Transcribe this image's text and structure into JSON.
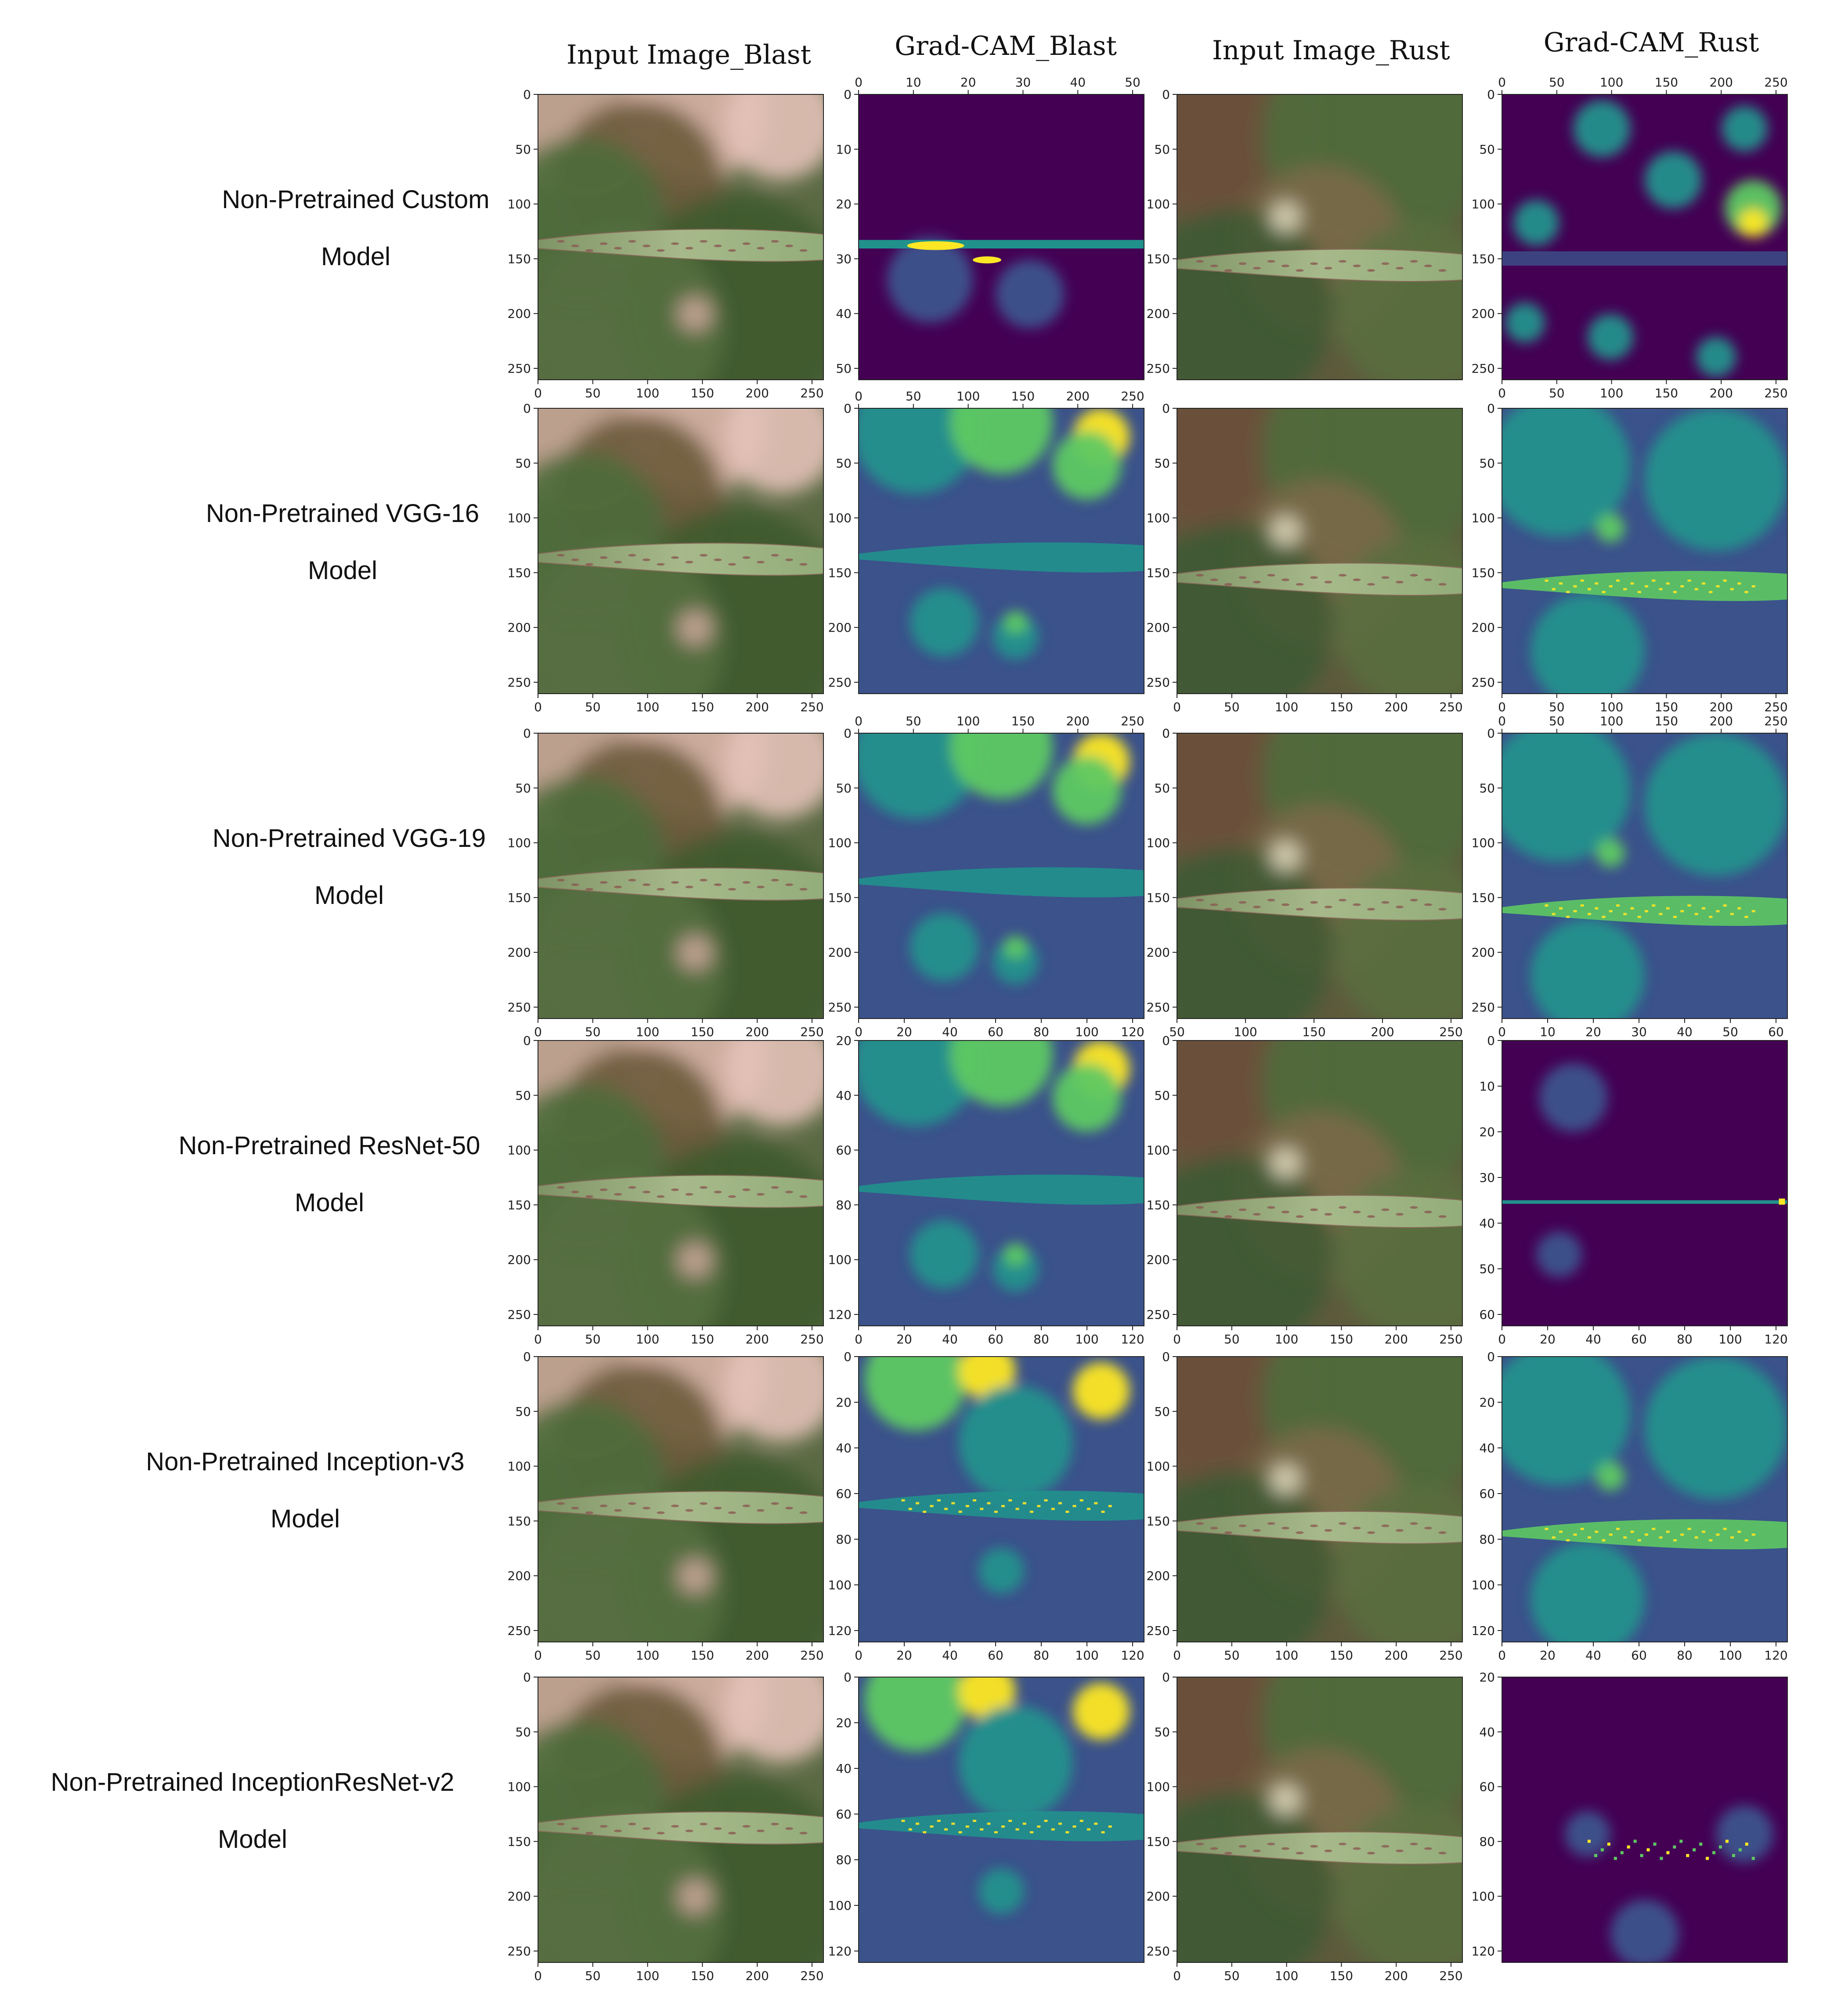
{
  "column_headers": [
    "Input Image_Blast",
    "Grad-CAM_Blast",
    "Input Image_Rust",
    "Grad-CAM_Rust"
  ],
  "rows": [
    {
      "label_line1": "Non-Pretrained Custom",
      "label_line2": "Model",
      "panels": [
        {
          "kind": "photo-blast",
          "x_ticks": [
            "0",
            "50",
            "100",
            "150",
            "200",
            "250"
          ],
          "y_ticks": [
            "0",
            "50",
            "100",
            "150",
            "200",
            "250"
          ],
          "x_axis": "bottom"
        },
        {
          "kind": "heat-sparse-blast",
          "x_ticks": [
            "0",
            "10",
            "20",
            "30",
            "40",
            "50"
          ],
          "y_ticks": [
            "0",
            "10",
            "20",
            "30",
            "40",
            "50"
          ],
          "x_axis": "top"
        },
        {
          "kind": "photo-rust",
          "x_ticks": [],
          "y_ticks": [
            "0",
            "50",
            "100",
            "150",
            "200",
            "250"
          ],
          "x_axis": "none"
        },
        {
          "kind": "heat-blobs-rust",
          "x_ticks": [
            "0",
            "50",
            "100",
            "150",
            "200",
            "250"
          ],
          "x_ticks_bottom": [
            "0",
            "50",
            "100",
            "150",
            "200",
            "250"
          ],
          "y_ticks": [
            "0",
            "50",
            "100",
            "150",
            "200",
            "250"
          ],
          "x_axis": "top"
        }
      ]
    },
    {
      "label_line1": "Non-Pretrained VGG-16",
      "label_line2": "Model",
      "panels": [
        {
          "kind": "photo-blast",
          "x_ticks": [
            "0",
            "50",
            "100",
            "150",
            "200",
            "250"
          ],
          "y_ticks": [
            "0",
            "50",
            "100",
            "150",
            "200",
            "250"
          ],
          "x_axis": "bottom"
        },
        {
          "kind": "heat-smooth-blast",
          "x_ticks": [
            "0",
            "50",
            "100",
            "150",
            "200",
            "250"
          ],
          "y_ticks": [
            "0",
            "50",
            "100",
            "150",
            "200",
            "250"
          ],
          "x_axis": "top"
        },
        {
          "kind": "photo-rust",
          "x_ticks": [
            "0",
            "50",
            "100",
            "150",
            "200",
            "250"
          ],
          "y_ticks": [
            "0",
            "50",
            "100",
            "150",
            "200",
            "250"
          ],
          "x_axis": "bottom"
        },
        {
          "kind": "heat-smooth-rust",
          "x_ticks": [
            "0",
            "50",
            "100",
            "150",
            "200",
            "250"
          ],
          "y_ticks": [
            "0",
            "50",
            "100",
            "150",
            "200",
            "250"
          ],
          "x_axis": "bottom"
        }
      ]
    },
    {
      "label_line1": "Non-Pretrained VGG-19",
      "label_line2": "Model",
      "panels": [
        {
          "kind": "photo-blast",
          "x_ticks": [
            "0",
            "50",
            "100",
            "150",
            "200",
            "250"
          ],
          "y_ticks": [
            "0",
            "50",
            "100",
            "150",
            "200",
            "250"
          ],
          "x_axis": "bottom"
        },
        {
          "kind": "heat-smooth-blast",
          "x_ticks": [
            "0",
            "50",
            "100",
            "150",
            "200",
            "250"
          ],
          "x_ticks_bottom": [
            "0",
            "20",
            "40",
            "60",
            "80",
            "100",
            "120"
          ],
          "y_ticks": [
            "0",
            "50",
            "100",
            "150",
            "200",
            "250"
          ],
          "x_axis": "top"
        },
        {
          "kind": "photo-rust",
          "x_ticks": [
            "50",
            "100",
            "150",
            "200",
            "250"
          ],
          "y_ticks": [
            "0",
            "50",
            "100",
            "150",
            "200",
            "250"
          ],
          "x_axis": "bottom"
        },
        {
          "kind": "heat-smooth-rust",
          "x_ticks": [
            "0",
            "50",
            "100",
            "150",
            "200",
            "250"
          ],
          "x_ticks_bottom": [
            "0",
            "10",
            "20",
            "30",
            "40",
            "50",
            "60"
          ],
          "y_ticks": [
            "0",
            "50",
            "100",
            "150",
            "200",
            "250"
          ],
          "x_axis": "top"
        }
      ]
    },
    {
      "label_line1": "Non-Pretrained ResNet-50",
      "label_line2": "Model",
      "panels": [
        {
          "kind": "photo-blast",
          "x_ticks": [
            "0",
            "50",
            "100",
            "150",
            "200",
            "250"
          ],
          "y_ticks": [
            "0",
            "50",
            "100",
            "150",
            "200",
            "250"
          ],
          "x_axis": "bottom"
        },
        {
          "kind": "heat-smooth-blast",
          "x_ticks": [
            "0",
            "20",
            "40",
            "60",
            "80",
            "100",
            "120"
          ],
          "y_ticks": [
            "20",
            "40",
            "60",
            "80",
            "100",
            "120"
          ],
          "x_axis": "bottom"
        },
        {
          "kind": "photo-rust",
          "x_ticks": [
            "0",
            "50",
            "100",
            "150",
            "200",
            "250"
          ],
          "y_ticks": [
            "0",
            "50",
            "100",
            "150",
            "200",
            "250"
          ],
          "x_axis": "bottom"
        },
        {
          "kind": "heat-sparse-rust",
          "x_ticks": [
            "0",
            "20",
            "40",
            "60",
            "80",
            "100",
            "120"
          ],
          "y_ticks": [
            "0",
            "10",
            "20",
            "30",
            "40",
            "50",
            "60"
          ],
          "x_axis": "bottom"
        }
      ]
    },
    {
      "label_line1": "Non-Pretrained Inception-v3",
      "label_line2": "Model",
      "panels": [
        {
          "kind": "photo-blast",
          "x_ticks": [
            "0",
            "50",
            "100",
            "150",
            "200",
            "250"
          ],
          "y_ticks": [
            "0",
            "50",
            "100",
            "150",
            "200",
            "250"
          ],
          "x_axis": "bottom"
        },
        {
          "kind": "heat-speckle-blast",
          "x_ticks": [
            "0",
            "20",
            "40",
            "60",
            "80",
            "100",
            "120"
          ],
          "y_ticks": [
            "0",
            "20",
            "40",
            "60",
            "80",
            "100",
            "120"
          ],
          "x_axis": "bottom"
        },
        {
          "kind": "photo-rust",
          "x_ticks": [
            "0",
            "50",
            "100",
            "150",
            "200",
            "250"
          ],
          "y_ticks": [
            "0",
            "50",
            "100",
            "150",
            "200",
            "250"
          ],
          "x_axis": "bottom"
        },
        {
          "kind": "heat-smooth-rust",
          "x_ticks": [
            "0",
            "20",
            "40",
            "60",
            "80",
            "100",
            "120"
          ],
          "y_ticks": [
            "0",
            "20",
            "40",
            "60",
            "80",
            "100",
            "120"
          ],
          "x_axis": "bottom"
        }
      ]
    },
    {
      "label_line1": "Non-Pretrained InceptionResNet-v2",
      "label_line2": "Model",
      "panels": [
        {
          "kind": "photo-blast",
          "x_ticks": [
            "0",
            "50",
            "100",
            "150",
            "200",
            "250"
          ],
          "y_ticks": [
            "0",
            "50",
            "100",
            "150",
            "200",
            "250"
          ],
          "x_axis": "bottom"
        },
        {
          "kind": "heat-speckle-blast",
          "x_ticks": [],
          "y_ticks": [
            "0",
            "20",
            "40",
            "60",
            "80",
            "100",
            "120"
          ],
          "x_axis": "none"
        },
        {
          "kind": "photo-rust",
          "x_ticks": [
            "0",
            "50",
            "100",
            "150",
            "200",
            "250"
          ],
          "y_ticks": [
            "0",
            "50",
            "100",
            "150",
            "200",
            "250"
          ],
          "x_axis": "bottom"
        },
        {
          "kind": "heat-dark-rust",
          "x_ticks": [],
          "y_ticks": [
            "20",
            "40",
            "60",
            "80",
            "100",
            "120"
          ],
          "x_axis": "none"
        }
      ]
    }
  ],
  "colors": {
    "viridis_dark": "#440154",
    "viridis_blue": "#3b528b",
    "viridis_teal": "#21918c",
    "viridis_green": "#5ec962",
    "viridis_yellow": "#fde725"
  }
}
